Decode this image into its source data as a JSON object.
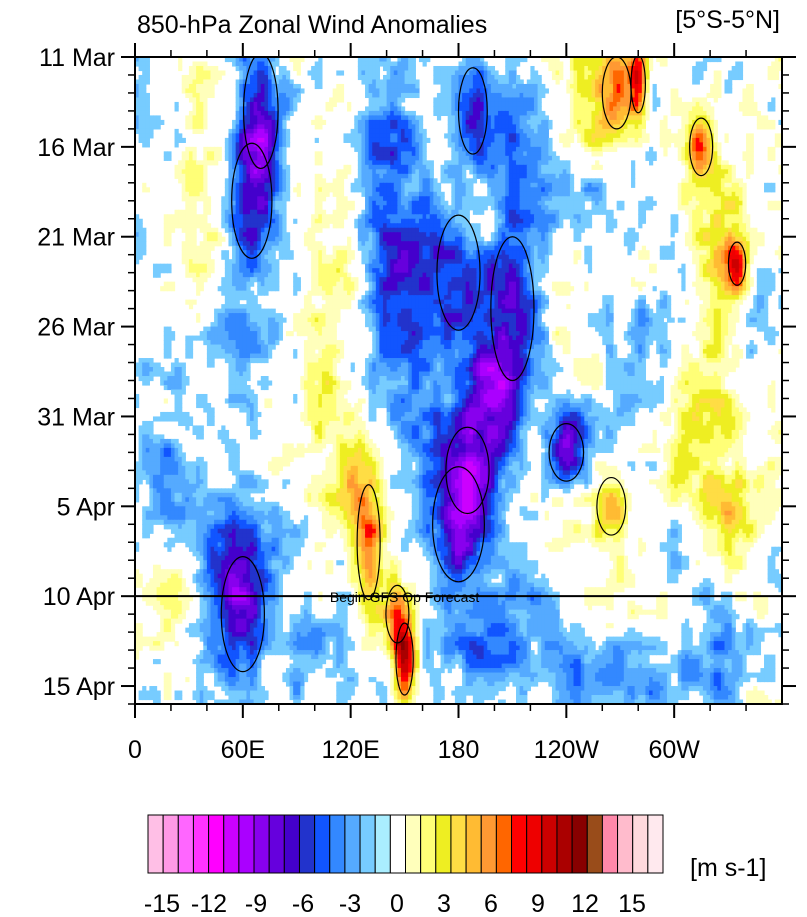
{
  "chart_data": {
    "type": "heatmap",
    "title": "850-hPa Zonal Wind Anomalies",
    "region_label": "[5°S-5°N]",
    "y_ticks": [
      "11 Mar",
      "16 Mar",
      "21 Mar",
      "26 Mar",
      "31 Mar",
      "5 Apr",
      "10 Apr",
      "15 Apr"
    ],
    "x_ticks": [
      "0",
      "60E",
      "120E",
      "180",
      "120W",
      "60W"
    ],
    "x_tick_lon": [
      0,
      60,
      120,
      180,
      240,
      300
    ],
    "x_range_lon": [
      0,
      360
    ],
    "y_range_days": [
      0,
      36
    ],
    "forecast_line": {
      "label": "Begin GFS Op Forecast",
      "day": 30
    },
    "colorbar": {
      "unit": "[m s-1]",
      "tick_labels": [
        "-15",
        "-12",
        "-9",
        "-6",
        "-3",
        "0",
        "3",
        "6",
        "9",
        "12",
        "15"
      ],
      "colors": [
        "#ffbfe6",
        "#ff99e6",
        "#ff66ff",
        "#ff33ff",
        "#ff00ff",
        "#cc00ff",
        "#aa00ff",
        "#8800ee",
        "#6600dd",
        "#4400cc",
        "#2233cc",
        "#1155ff",
        "#3388ff",
        "#55aaff",
        "#77ccff",
        "#aaeeff",
        "#ffffff",
        "#ffffbb",
        "#ffff77",
        "#eeee22",
        "#ffdd44",
        "#ffbb33",
        "#ff9933",
        "#ff6600",
        "#ff0000",
        "#ee0000",
        "#cc0000",
        "#aa0000",
        "#880000",
        "#994c1a",
        "#ff88aa",
        "#ffbbcc",
        "#ffd9dd",
        "#ffe9ee"
      ]
    },
    "features": [
      {
        "lon": 70,
        "day": 3,
        "v": -7,
        "slon": 12,
        "sday": 4
      },
      {
        "lon": 65,
        "day": 8,
        "v": -6,
        "slon": 14,
        "sday": 4
      },
      {
        "lon": 140,
        "day": 4,
        "v": -4,
        "slon": 18,
        "sday": 4
      },
      {
        "lon": 188,
        "day": 3,
        "v": -6,
        "slon": 10,
        "sday": 3
      },
      {
        "lon": 205,
        "day": 5,
        "v": -4,
        "slon": 15,
        "sday": 4
      },
      {
        "lon": 150,
        "day": 11,
        "v": -5,
        "slon": 18,
        "sday": 4
      },
      {
        "lon": 150,
        "day": 17,
        "v": -4,
        "slon": 20,
        "sday": 6
      },
      {
        "lon": 180,
        "day": 12,
        "v": -6,
        "slon": 15,
        "sday": 4
      },
      {
        "lon": 210,
        "day": 14,
        "v": -6,
        "slon": 15,
        "sday": 5
      },
      {
        "lon": 195,
        "day": 18,
        "v": -5,
        "slon": 15,
        "sday": 3
      },
      {
        "lon": 60,
        "day": 16,
        "v": -3,
        "slon": 15,
        "sday": 3
      },
      {
        "lon": 200,
        "day": 20,
        "v": -4,
        "slon": 15,
        "sday": 4
      },
      {
        "lon": 245,
        "day": 21,
        "v": -3,
        "slon": 15,
        "sday": 3
      },
      {
        "lon": 240,
        "day": 22,
        "v": -7,
        "slon": 12,
        "sday": 2
      },
      {
        "lon": 180,
        "day": 26,
        "v": -7,
        "slon": 18,
        "sday": 4
      },
      {
        "lon": 185,
        "day": 23,
        "v": -6,
        "slon": 15,
        "sday": 3
      },
      {
        "lon": 60,
        "day": 31,
        "v": -7,
        "slon": 15,
        "sday": 4
      },
      {
        "lon": 55,
        "day": 28,
        "v": -4,
        "slon": 20,
        "sday": 3
      },
      {
        "lon": 20,
        "day": 24,
        "v": -3,
        "slon": 15,
        "sday": 4
      },
      {
        "lon": 260,
        "day": 34.5,
        "v": -4,
        "slon": 40,
        "sday": 2
      },
      {
        "lon": 220,
        "day": 30,
        "v": -3,
        "slon": 20,
        "sday": 3
      },
      {
        "lon": 310,
        "day": 27,
        "v": -2,
        "slon": 20,
        "sday": 3
      },
      {
        "lon": 318,
        "day": 33,
        "v": -3,
        "slon": 18,
        "sday": 3
      },
      {
        "lon": 340,
        "day": 15,
        "v": -2,
        "slon": 15,
        "sday": 4
      },
      {
        "lon": 240,
        "day": 9,
        "v": -3,
        "slon": 20,
        "sday": 3
      },
      {
        "lon": 275,
        "day": 16,
        "v": -2,
        "slon": 20,
        "sday": 4
      },
      {
        "lon": 20,
        "day": 6,
        "v": -2,
        "slon": 15,
        "sday": 6
      },
      {
        "lon": 195,
        "day": 33,
        "v": -3,
        "slon": 25,
        "sday": 2
      },
      {
        "lon": 100,
        "day": 33,
        "v": -2,
        "slon": 20,
        "sday": 3
      },
      {
        "lon": 268,
        "day": 2,
        "v": 7,
        "slon": 10,
        "sday": 2.5
      },
      {
        "lon": 280,
        "day": 1.5,
        "v": 9,
        "slon": 5,
        "sday": 2
      },
      {
        "lon": 252,
        "day": 2,
        "v": 4,
        "slon": 12,
        "sday": 3
      },
      {
        "lon": 315,
        "day": 5,
        "v": 7,
        "slon": 8,
        "sday": 2
      },
      {
        "lon": 330,
        "day": 11,
        "v": 5,
        "slon": 15,
        "sday": 4
      },
      {
        "lon": 335,
        "day": 11.5,
        "v": 7,
        "slon": 6,
        "sday": 1.5
      },
      {
        "lon": 265,
        "day": 25,
        "v": 6,
        "slon": 10,
        "sday": 2
      },
      {
        "lon": 330,
        "day": 25,
        "v": 4,
        "slon": 15,
        "sday": 3
      },
      {
        "lon": 130,
        "day": 27,
        "v": 8,
        "slon": 8,
        "sday": 4
      },
      {
        "lon": 120,
        "day": 24,
        "v": 5,
        "slon": 8,
        "sday": 3
      },
      {
        "lon": 150,
        "day": 33.5,
        "v": 10,
        "slon": 6,
        "sday": 2.5
      },
      {
        "lon": 146,
        "day": 31,
        "v": 6,
        "slon": 8,
        "sday": 2
      },
      {
        "lon": 240,
        "day": 25,
        "v": 2,
        "slon": 20,
        "sday": 6
      },
      {
        "lon": 105,
        "day": 20,
        "v": 3,
        "slon": 12,
        "sday": 6
      },
      {
        "lon": 35,
        "day": 7,
        "v": 3,
        "slon": 15,
        "sday": 6
      },
      {
        "lon": 240,
        "day": 13,
        "v": 2,
        "slon": 15,
        "sday": 5
      },
      {
        "lon": 190,
        "day": 7,
        "v": 2,
        "slon": 15,
        "sday": 3
      },
      {
        "lon": 20,
        "day": 30,
        "v": 3,
        "slon": 15,
        "sday": 3
      },
      {
        "lon": 305,
        "day": 22,
        "v": 2,
        "slon": 10,
        "sday": 6
      },
      {
        "lon": 110,
        "day": 12,
        "v": 2,
        "slon": 15,
        "sday": 3
      },
      {
        "lon": 320,
        "day": 20,
        "v": 3,
        "slon": 12,
        "sday": 5
      }
    ]
  }
}
